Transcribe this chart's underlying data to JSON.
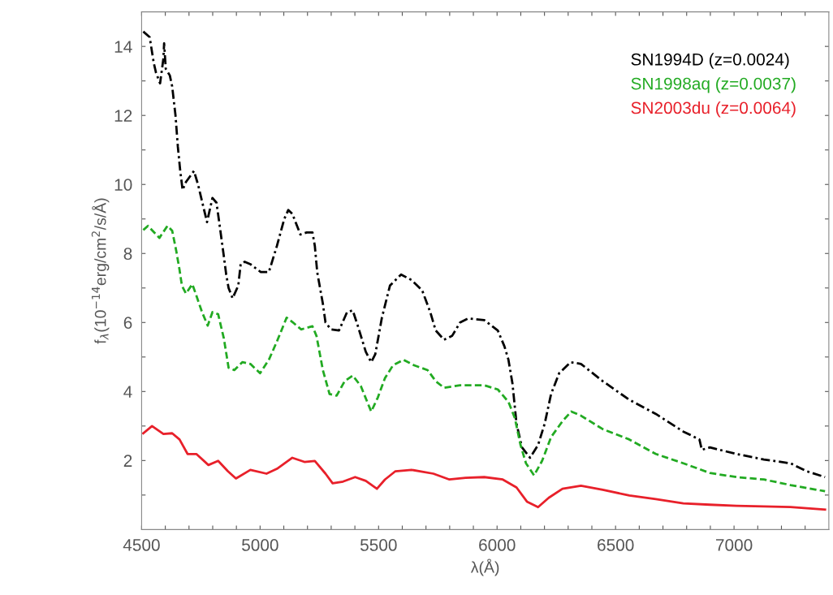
{
  "chart_data": {
    "type": "line",
    "xlabel": "λ(Å)",
    "ylabel": "f$_{λ}$(10$^{−14}$erg/cm$^{2}$/s/Å)",
    "xlim": [
      4500,
      7400
    ],
    "ylim": [
      0,
      15
    ],
    "xticks": [
      4500,
      {
        "value": 4600,
        "label": null
      },
      {
        "value": 4700,
        "label": null
      },
      {
        "value": 4800,
        "label": null
      },
      {
        "value": 4900,
        "label": null
      },
      5000,
      {
        "value": 5100,
        "label": null
      },
      {
        "value": 5200,
        "label": null
      },
      {
        "value": 5300,
        "label": null
      },
      {
        "value": 5400,
        "label": null
      },
      5500,
      {
        "value": 5600,
        "label": null
      },
      {
        "value": 5700,
        "label": null
      },
      {
        "value": 5800,
        "label": null
      },
      {
        "value": 5900,
        "label": null
      },
      6000,
      {
        "value": 6100,
        "label": null
      },
      {
        "value": 6200,
        "label": null
      },
      {
        "value": 6300,
        "label": null
      },
      {
        "value": 6400,
        "label": null
      },
      6500,
      {
        "value": 6600,
        "label": null
      },
      {
        "value": 6700,
        "label": null
      },
      {
        "value": 6800,
        "label": null
      },
      {
        "value": 6900,
        "label": null
      },
      7000,
      {
        "value": 7100,
        "label": null
      },
      {
        "value": 7200,
        "label": null
      },
      {
        "value": 7300,
        "label": null
      }
    ],
    "yticks": [
      {
        "value": 1,
        "label": null
      },
      2,
      {
        "value": 3,
        "label": null
      },
      4,
      {
        "value": 5,
        "label": null
      },
      6,
      {
        "value": 7,
        "label": null
      },
      8,
      {
        "value": 9,
        "label": null
      },
      10,
      {
        "value": 11,
        "label": null
      },
      12,
      {
        "value": 13,
        "label": null
      },
      14
    ],
    "grid": false,
    "legend": "top right",
    "series": [
      {
        "name": "SN1994D (z=0.0024)",
        "color": "#000000",
        "line_style": "dotted",
        "x": [
          4507,
          4534,
          4551,
          4561,
          4578,
          4592,
          4595,
          4602,
          4619,
          4629,
          4643,
          4653,
          4663,
          4673,
          4687,
          4721,
          4738,
          4762,
          4776,
          4799,
          4816,
          4830,
          4847,
          4857,
          4867,
          4884,
          4908,
          4918,
          4935,
          4959,
          5003,
          5037,
          5071,
          5102,
          5119,
          5136,
          5170,
          5197,
          5221,
          5231,
          5241,
          5265,
          5276,
          5299,
          5333,
          5367,
          5391,
          5412,
          5446,
          5469,
          5486,
          5514,
          5548,
          5595,
          5639,
          5684,
          5718,
          5741,
          5776,
          5810,
          5844,
          5878,
          5946,
          6003,
          6031,
          6048,
          6065,
          6082,
          6105,
          6139,
          6173,
          6201,
          6228,
          6262,
          6310,
          6354,
          6446,
          6558,
          6670,
          6786,
          6854,
          6864,
          6898,
          7010,
          7126,
          7238,
          7306,
          7384
        ],
        "values": [
          14.43,
          14.27,
          13.53,
          13.23,
          12.93,
          13.65,
          14.09,
          13.35,
          13.16,
          12.84,
          12.0,
          11.09,
          10.39,
          9.84,
          10.07,
          10.39,
          10.0,
          9.31,
          8.91,
          9.61,
          9.47,
          8.78,
          7.92,
          7.39,
          7.0,
          6.7,
          7.07,
          7.69,
          7.76,
          7.69,
          7.46,
          7.46,
          8.22,
          9.0,
          9.26,
          9.15,
          8.55,
          8.61,
          8.61,
          8.22,
          7.46,
          6.54,
          6.0,
          5.8,
          5.77,
          6.3,
          6.35,
          5.91,
          5.15,
          4.85,
          5.08,
          6.14,
          7.07,
          7.39,
          7.23,
          6.93,
          6.3,
          5.77,
          5.5,
          5.61,
          6.0,
          6.12,
          6.07,
          5.77,
          5.31,
          4.92,
          4.23,
          3.07,
          2.38,
          2.08,
          2.45,
          3.07,
          3.93,
          4.53,
          4.85,
          4.8,
          4.3,
          3.76,
          3.35,
          2.84,
          2.61,
          2.31,
          2.38,
          2.19,
          2.03,
          1.92,
          1.69,
          1.52
        ]
      },
      {
        "name": "SN1998aq (z=0.0037)",
        "color": "#22aa22",
        "line_style": "dashed",
        "x": [
          4507,
          4527,
          4575,
          4609,
          4629,
          4646,
          4660,
          4670,
          4687,
          4714,
          4728,
          4755,
          4779,
          4799,
          4823,
          4847,
          4867,
          4891,
          4925,
          4959,
          5000,
          5037,
          5071,
          5112,
          5139,
          5173,
          5221,
          5238,
          5265,
          5293,
          5323,
          5357,
          5391,
          5425,
          5452,
          5469,
          5497,
          5527,
          5561,
          5605,
          5650,
          5707,
          5741,
          5776,
          5844,
          5946,
          6003,
          6048,
          6075,
          6099,
          6122,
          6156,
          6190,
          6228,
          6276,
          6313,
          6354,
          6446,
          6558,
          6670,
          6786,
          6898,
          7010,
          7126,
          7238,
          7384
        ],
        "values": [
          8.68,
          8.8,
          8.45,
          8.8,
          8.66,
          8.08,
          7.53,
          7.07,
          6.84,
          7.11,
          6.84,
          6.3,
          5.91,
          6.3,
          6.24,
          5.54,
          4.69,
          4.62,
          4.85,
          4.8,
          4.53,
          4.92,
          5.45,
          6.14,
          6.0,
          5.8,
          5.89,
          5.61,
          4.62,
          3.93,
          3.88,
          4.3,
          4.46,
          4.16,
          3.7,
          3.42,
          3.83,
          4.39,
          4.76,
          4.92,
          4.76,
          4.62,
          4.3,
          4.11,
          4.18,
          4.18,
          4.06,
          3.7,
          3.23,
          2.45,
          1.92,
          1.57,
          1.99,
          2.68,
          3.14,
          3.42,
          3.3,
          2.91,
          2.61,
          2.19,
          1.92,
          1.64,
          1.52,
          1.45,
          1.29,
          1.11
        ]
      },
      {
        "name": "SN2003du (z=0.0064)",
        "color": "#e8202a",
        "line_style": "solid",
        "x": [
          4507,
          4544,
          4592,
          4629,
          4660,
          4694,
          4731,
          4782,
          4823,
          4864,
          4898,
          4959,
          5027,
          5071,
          5136,
          5187,
          5231,
          5276,
          5306,
          5350,
          5401,
          5446,
          5493,
          5527,
          5571,
          5639,
          5731,
          5799,
          5867,
          5946,
          6024,
          6082,
          6126,
          6173,
          6218,
          6276,
          6354,
          6446,
          6558,
          6670,
          6786,
          6898,
          7010,
          7126,
          7238,
          7384
        ],
        "values": [
          2.79,
          3.0,
          2.77,
          2.79,
          2.61,
          2.19,
          2.19,
          1.87,
          1.99,
          1.69,
          1.48,
          1.73,
          1.62,
          1.76,
          2.08,
          1.96,
          1.99,
          1.62,
          1.34,
          1.39,
          1.52,
          1.41,
          1.18,
          1.45,
          1.69,
          1.73,
          1.62,
          1.45,
          1.5,
          1.52,
          1.45,
          1.22,
          0.81,
          0.65,
          0.92,
          1.18,
          1.27,
          1.15,
          0.99,
          0.88,
          0.76,
          0.72,
          0.69,
          0.67,
          0.65,
          0.58
        ]
      }
    ]
  }
}
